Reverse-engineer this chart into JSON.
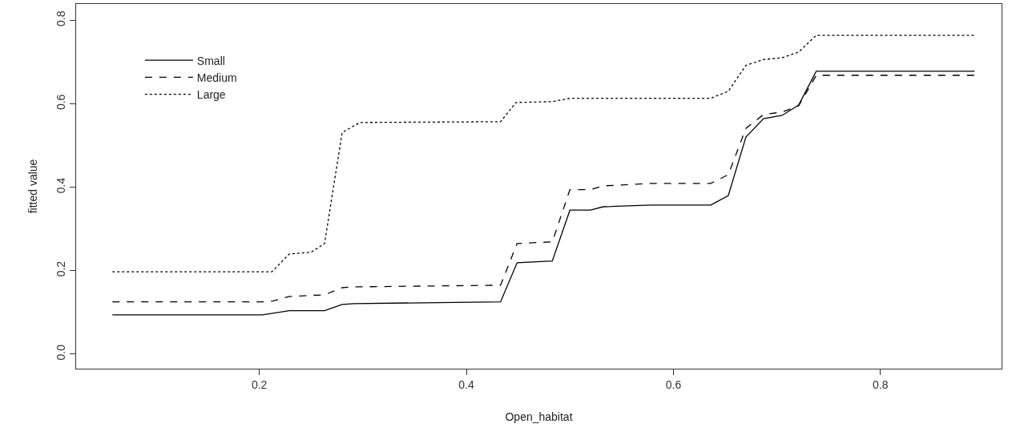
{
  "chart_data": {
    "type": "line",
    "xlabel": "Open_habitat",
    "ylabel": "fitted value",
    "xlim": [
      0.023,
      0.917
    ],
    "ylim": [
      -0.035,
      0.839
    ],
    "xticks": [
      0.2,
      0.4,
      0.6,
      0.8
    ],
    "yticks": [
      {
        "value": 0,
        "label": "0.0"
      },
      0.2,
      0.4,
      0.6,
      0.8
    ],
    "legend": "top left",
    "marker": "none",
    "series": [
      {
        "name": "Small",
        "color": "#000000",
        "line_style": "solid",
        "x": [
          0.058,
          0.203,
          0.229,
          0.263,
          0.28,
          0.291,
          0.433,
          0.449,
          0.483,
          0.5,
          0.52,
          0.532,
          0.578,
          0.636,
          0.653,
          0.67,
          0.687,
          0.705,
          0.721,
          0.738,
          0.891
        ],
        "values": [
          0.094,
          0.094,
          0.104,
          0.104,
          0.119,
          0.121,
          0.125,
          0.219,
          0.223,
          0.345,
          0.345,
          0.353,
          0.357,
          0.357,
          0.38,
          0.52,
          0.564,
          0.572,
          0.597,
          0.678,
          0.678
        ]
      },
      {
        "name": "Medium",
        "color": "#000000",
        "line_style": "dashed",
        "x": [
          0.058,
          0.203,
          0.213,
          0.229,
          0.263,
          0.28,
          0.291,
          0.433,
          0.449,
          0.483,
          0.5,
          0.52,
          0.532,
          0.578,
          0.636,
          0.653,
          0.67,
          0.687,
          0.705,
          0.721,
          0.738,
          0.891
        ],
        "values": [
          0.125,
          0.125,
          0.127,
          0.138,
          0.142,
          0.159,
          0.161,
          0.165,
          0.265,
          0.269,
          0.394,
          0.394,
          0.403,
          0.409,
          0.409,
          0.43,
          0.541,
          0.574,
          0.58,
          0.595,
          0.668,
          0.668
        ]
      },
      {
        "name": "Large",
        "color": "#000000",
        "line_style": "dotted",
        "x": [
          0.058,
          0.212,
          0.229,
          0.25,
          0.263,
          0.28,
          0.297,
          0.433,
          0.448,
          0.483,
          0.5,
          0.636,
          0.653,
          0.67,
          0.687,
          0.705,
          0.721,
          0.738,
          0.891
        ],
        "values": [
          0.197,
          0.197,
          0.24,
          0.244,
          0.265,
          0.531,
          0.555,
          0.557,
          0.603,
          0.605,
          0.613,
          0.613,
          0.63,
          0.692,
          0.706,
          0.71,
          0.724,
          0.764,
          0.764
        ]
      }
    ]
  }
}
